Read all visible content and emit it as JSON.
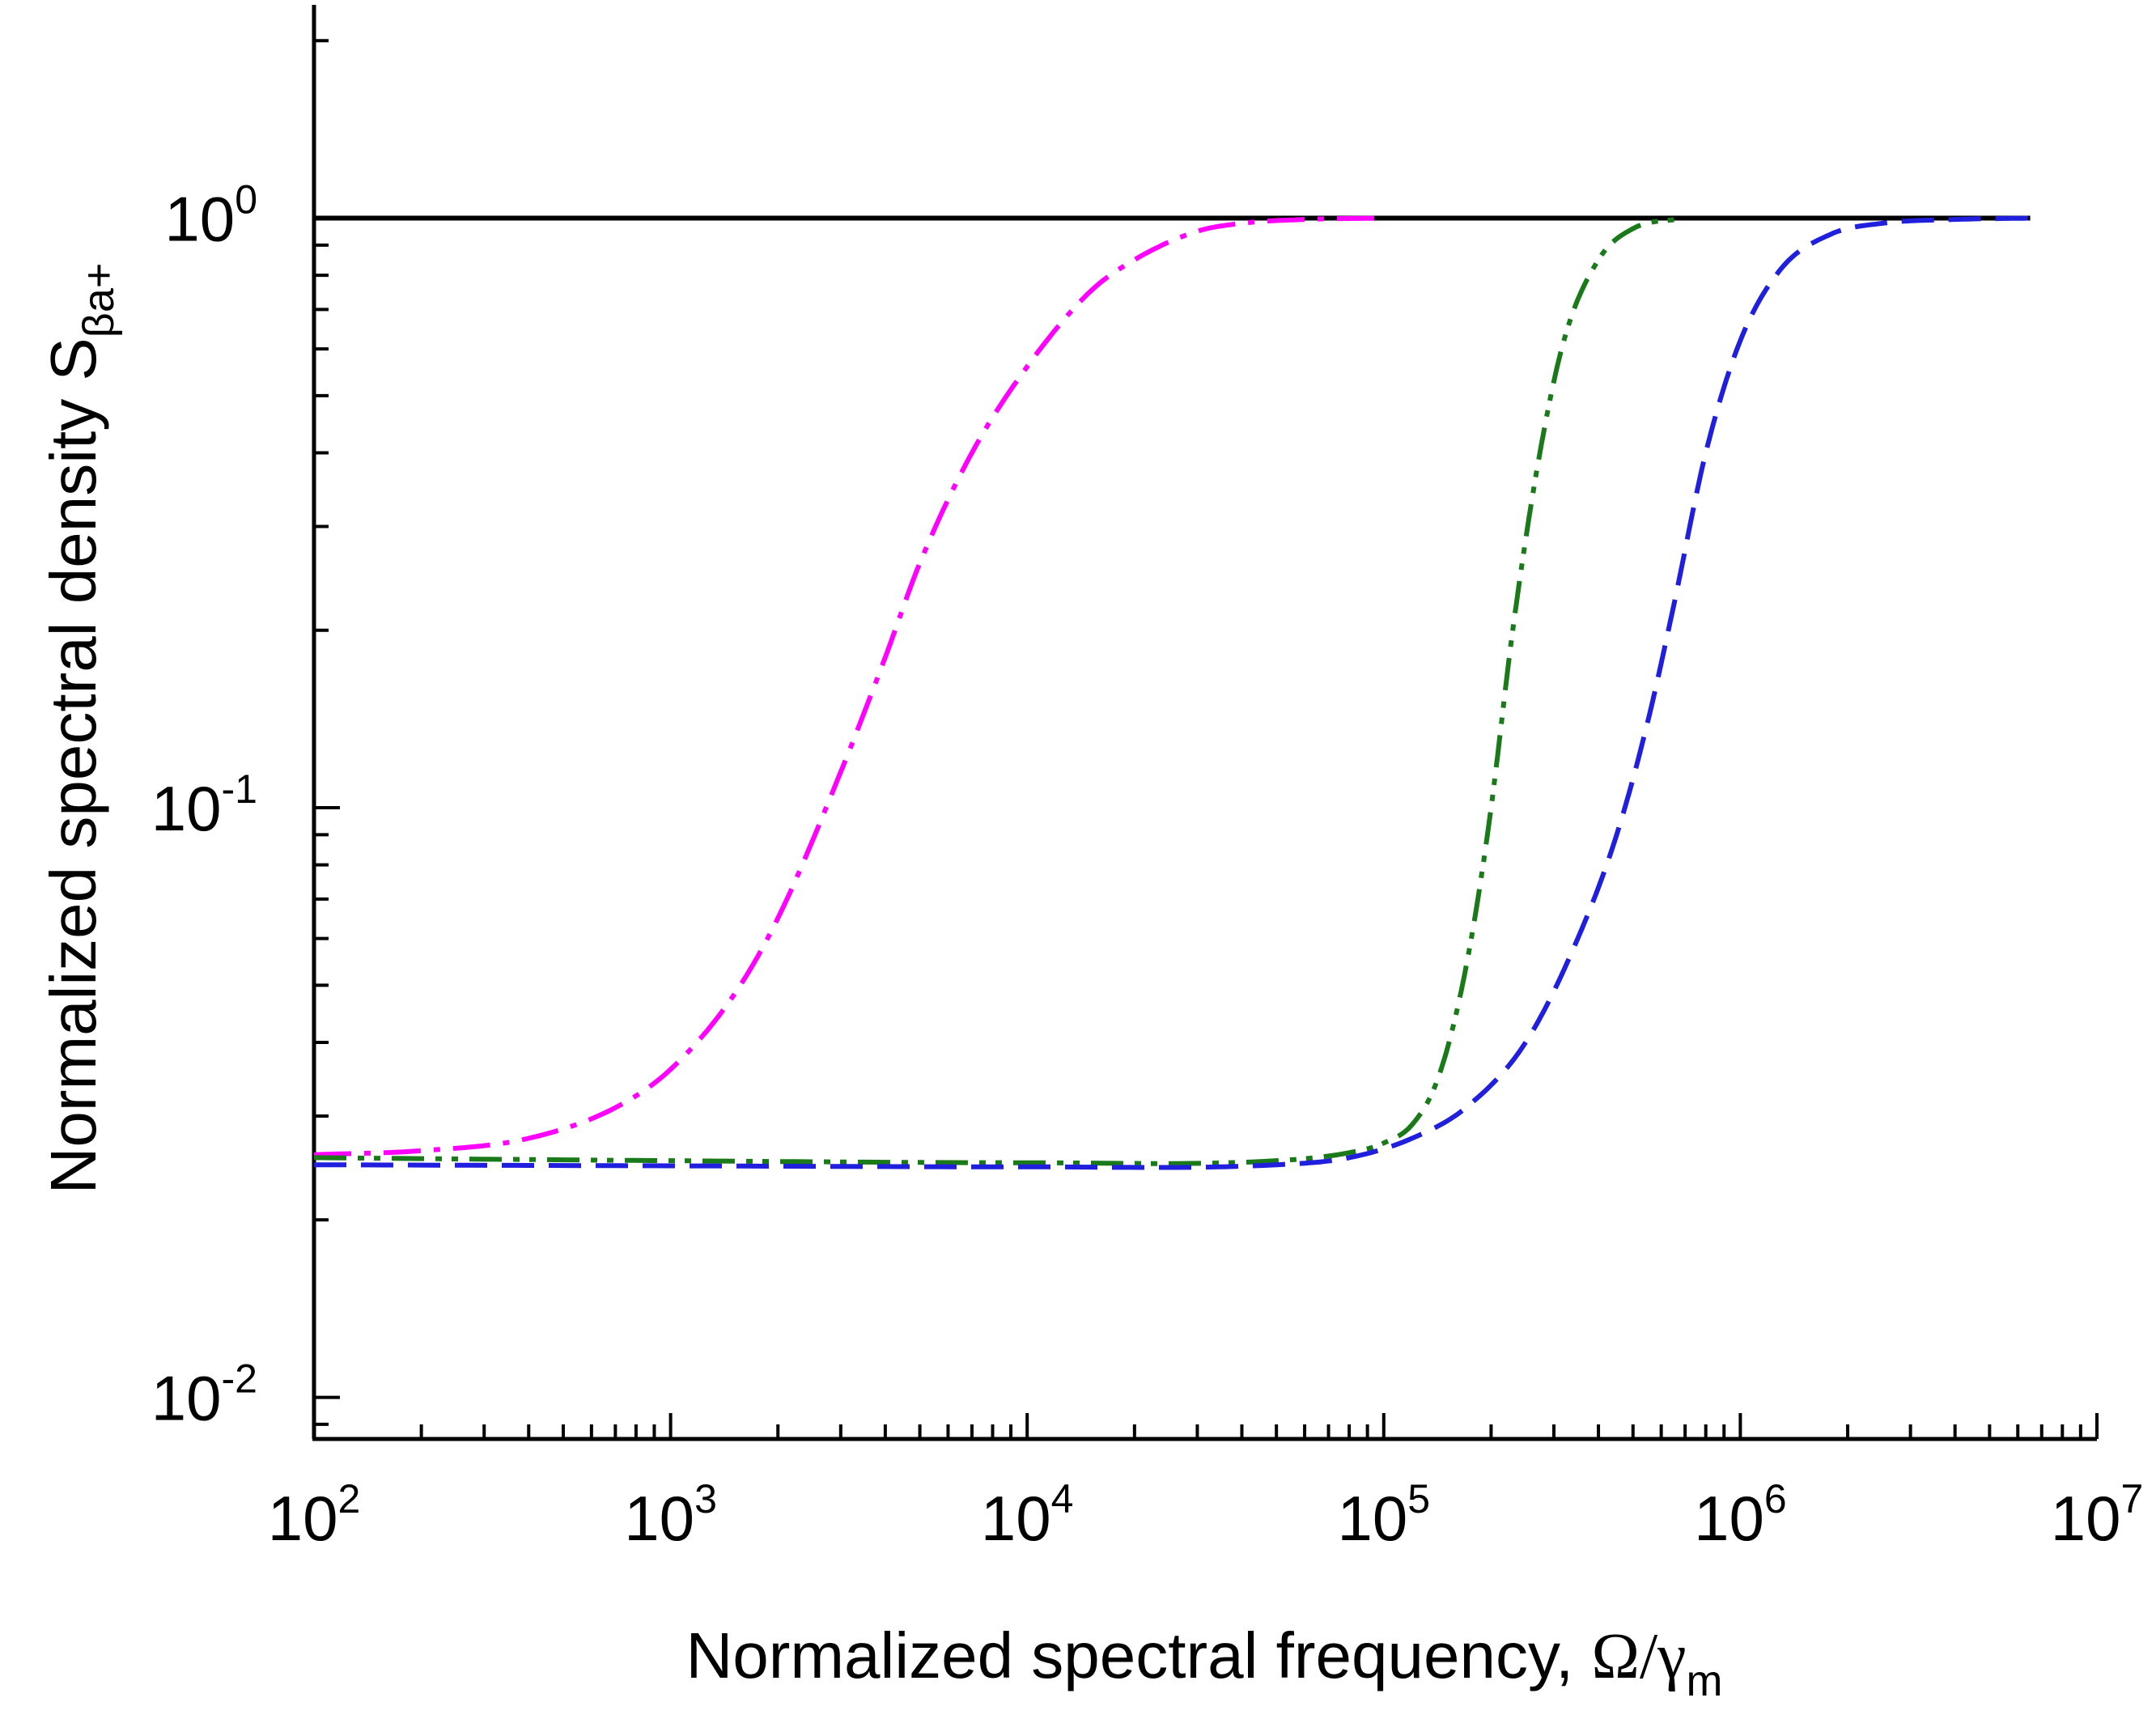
{
  "chart_data": {
    "type": "line",
    "xscale": "log",
    "yscale": "log",
    "xlim": [
      100,
      10000000
    ],
    "ylim": [
      0.0085,
      2.3
    ],
    "xlabel": {
      "text": "Normalized spectral frequency, ",
      "symbol": "Ω/γ",
      "sub": "m"
    },
    "ylabel": {
      "text": "Normalized spectral density S",
      "sub": "βa+"
    },
    "x_ticks": [
      {
        "value": 100,
        "base": "10",
        "exp": "2"
      },
      {
        "value": 1000,
        "base": "10",
        "exp": "3"
      },
      {
        "value": 10000,
        "base": "10",
        "exp": "4"
      },
      {
        "value": 100000,
        "base": "10",
        "exp": "5"
      },
      {
        "value": 1000000,
        "base": "10",
        "exp": "6"
      },
      {
        "value": 10000000,
        "base": "10",
        "exp": "7"
      }
    ],
    "y_ticks": [
      {
        "value": 0.01,
        "base": "10",
        "exp": "-2"
      },
      {
        "value": 0.1,
        "base": "10",
        "exp": "-1"
      },
      {
        "value": 1,
        "base": "10",
        "exp": "0"
      }
    ],
    "series": [
      {
        "name": "reference",
        "color": "#000000",
        "style": "solid",
        "x": [
          100,
          6500000
        ],
        "y": [
          1.0,
          1.0
        ]
      },
      {
        "name": "magenta",
        "color": "#ff00ff",
        "style": "dashdot",
        "x": [
          100,
          200,
          400,
          700,
          1000,
          1500,
          2000,
          3000,
          4000,
          5000,
          7000,
          10000,
          15000,
          20000,
          30000,
          40000,
          60000,
          100000
        ],
        "y": [
          0.0258,
          0.0262,
          0.0275,
          0.031,
          0.036,
          0.048,
          0.065,
          0.115,
          0.18,
          0.26,
          0.4,
          0.56,
          0.75,
          0.85,
          0.95,
          0.98,
          0.995,
          1.0
        ]
      },
      {
        "name": "green",
        "color": "#1a7a1a",
        "style": "dashdotdot",
        "x": [
          100,
          1000,
          10000,
          50000,
          80000,
          100000,
          120000,
          140000,
          160000,
          180000,
          200000,
          230000,
          270000,
          320000,
          400000,
          500000,
          700000
        ],
        "y": [
          0.0255,
          0.0252,
          0.025,
          0.0252,
          0.026,
          0.027,
          0.029,
          0.034,
          0.045,
          0.065,
          0.1,
          0.2,
          0.38,
          0.62,
          0.85,
          0.96,
          1.0
        ]
      },
      {
        "name": "blue",
        "color": "#1f1fdd",
        "style": "dashed",
        "x": [
          100,
          1000,
          10000,
          50000,
          80000,
          120000,
          170000,
          250000,
          350000,
          450000,
          550000,
          650000,
          800000,
          1000000,
          1300000,
          1800000,
          2500000,
          4000000,
          6500000
        ],
        "y": [
          0.0248,
          0.0247,
          0.0246,
          0.0248,
          0.0255,
          0.0275,
          0.031,
          0.04,
          0.06,
          0.09,
          0.14,
          0.22,
          0.4,
          0.62,
          0.82,
          0.94,
          0.98,
          0.995,
          1.0
        ]
      }
    ]
  }
}
